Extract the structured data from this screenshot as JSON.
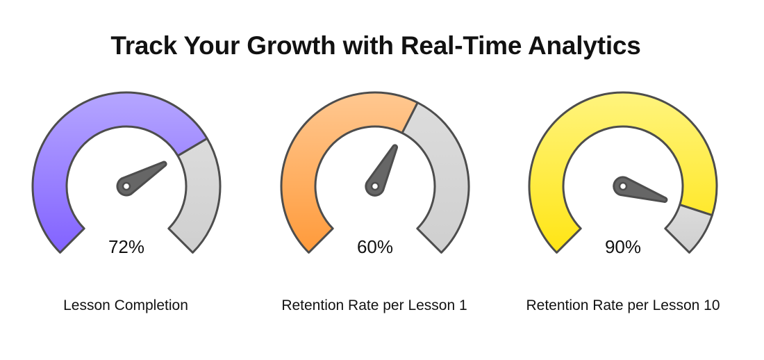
{
  "title": "Track Your Growth with Real-Time Analytics",
  "colors": {
    "stroke": "#4d4d4d",
    "needle_fill": "#666666",
    "remaining_top": "#dcdcdc",
    "remaining_bottom": "#cfcfcf",
    "text": "#111111"
  },
  "gauges": [
    {
      "label": "Lesson Completion",
      "value": 72,
      "value_text": "72%",
      "color_top": "#b5a6ff",
      "color_bottom": "#8262ff"
    },
    {
      "label": "Retention Rate per Lesson 1",
      "value": 60,
      "value_text": "60%",
      "color_top": "#ffc891",
      "color_bottom": "#ff9a3a"
    },
    {
      "label": "Retention Rate per Lesson 10",
      "value": 90,
      "value_text": "90%",
      "color_top": "#fff47e",
      "color_bottom": "#ffe514"
    }
  ],
  "chart_data": {
    "type": "gauge",
    "title": "Track Your Growth with Real-Time Analytics",
    "categories": [
      "Lesson Completion",
      "Retention Rate per Lesson 1",
      "Retention Rate per Lesson 10"
    ],
    "values": [
      72,
      60,
      90
    ],
    "unit": "%",
    "range": [
      0,
      100
    ],
    "sweep_degrees": 270
  }
}
